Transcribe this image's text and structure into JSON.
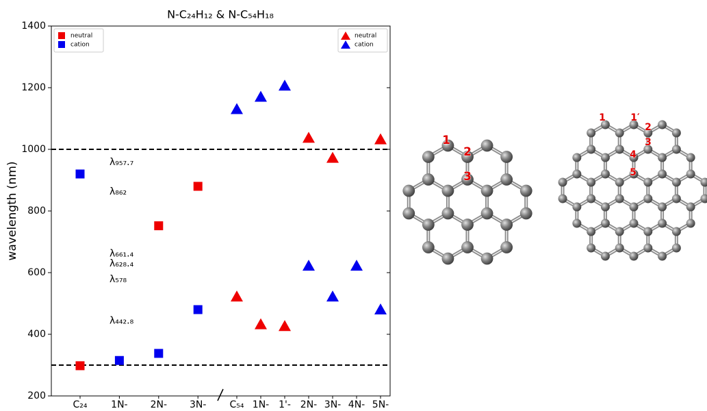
{
  "chart_data": {
    "type": "scatter",
    "title": "N-C₂₄H₁₂ & N-C₅₄H₁₈",
    "y_label": "wavelength (nm)",
    "ylim": [
      200,
      1400
    ],
    "yticks": [
      200,
      400,
      600,
      800,
      1000,
      1200,
      1400
    ],
    "hlines": [
      1000,
      300
    ],
    "groups": [
      {
        "categories": [
          "C₂₄",
          "1N-",
          "2N-",
          "3N-"
        ],
        "marker": "square",
        "legend": "upper left",
        "series": [
          {
            "name": "neutral",
            "color": "#ee0000",
            "values": [
              298,
              null,
              752,
              880
            ]
          },
          {
            "name": "cation",
            "color": "#0000ee",
            "values": [
              920,
              315,
              338,
              480
            ]
          }
        ]
      },
      {
        "categories": [
          "C₅₄",
          "1N-",
          "1'-",
          "2N-",
          "3N-",
          "4N-",
          "5N-"
        ],
        "marker": "triangle",
        "legend": "upper right",
        "series": [
          {
            "name": "neutral",
            "color": "#ee0000",
            "values": [
              522,
              432,
              426,
              1037,
              972,
              null,
              1032
            ]
          },
          {
            "name": "cation",
            "color": "#0000ee",
            "values": [
              1130,
              1170,
              1206,
              622,
              522,
              622,
              480
            ]
          }
        ]
      }
    ],
    "annotations": [
      {
        "value": 957.7,
        "label": "λ₉₅₇.₇"
      },
      {
        "value": 862,
        "label": "λ₈₆₂"
      },
      {
        "value": 661.4,
        "label": "λ₆₆₁.₄"
      },
      {
        "value": 628.4,
        "label": "λ₆₂₈.₄"
      },
      {
        "value": 578,
        "label": "λ₅₇₈"
      },
      {
        "value": 442.8,
        "label": "λ₄₄₂.₈"
      }
    ]
  },
  "molecules": [
    {
      "labels": [
        "1",
        "2",
        "3"
      ]
    },
    {
      "labels": [
        "1",
        "1′",
        "2",
        "3",
        "4",
        "5"
      ]
    }
  ]
}
